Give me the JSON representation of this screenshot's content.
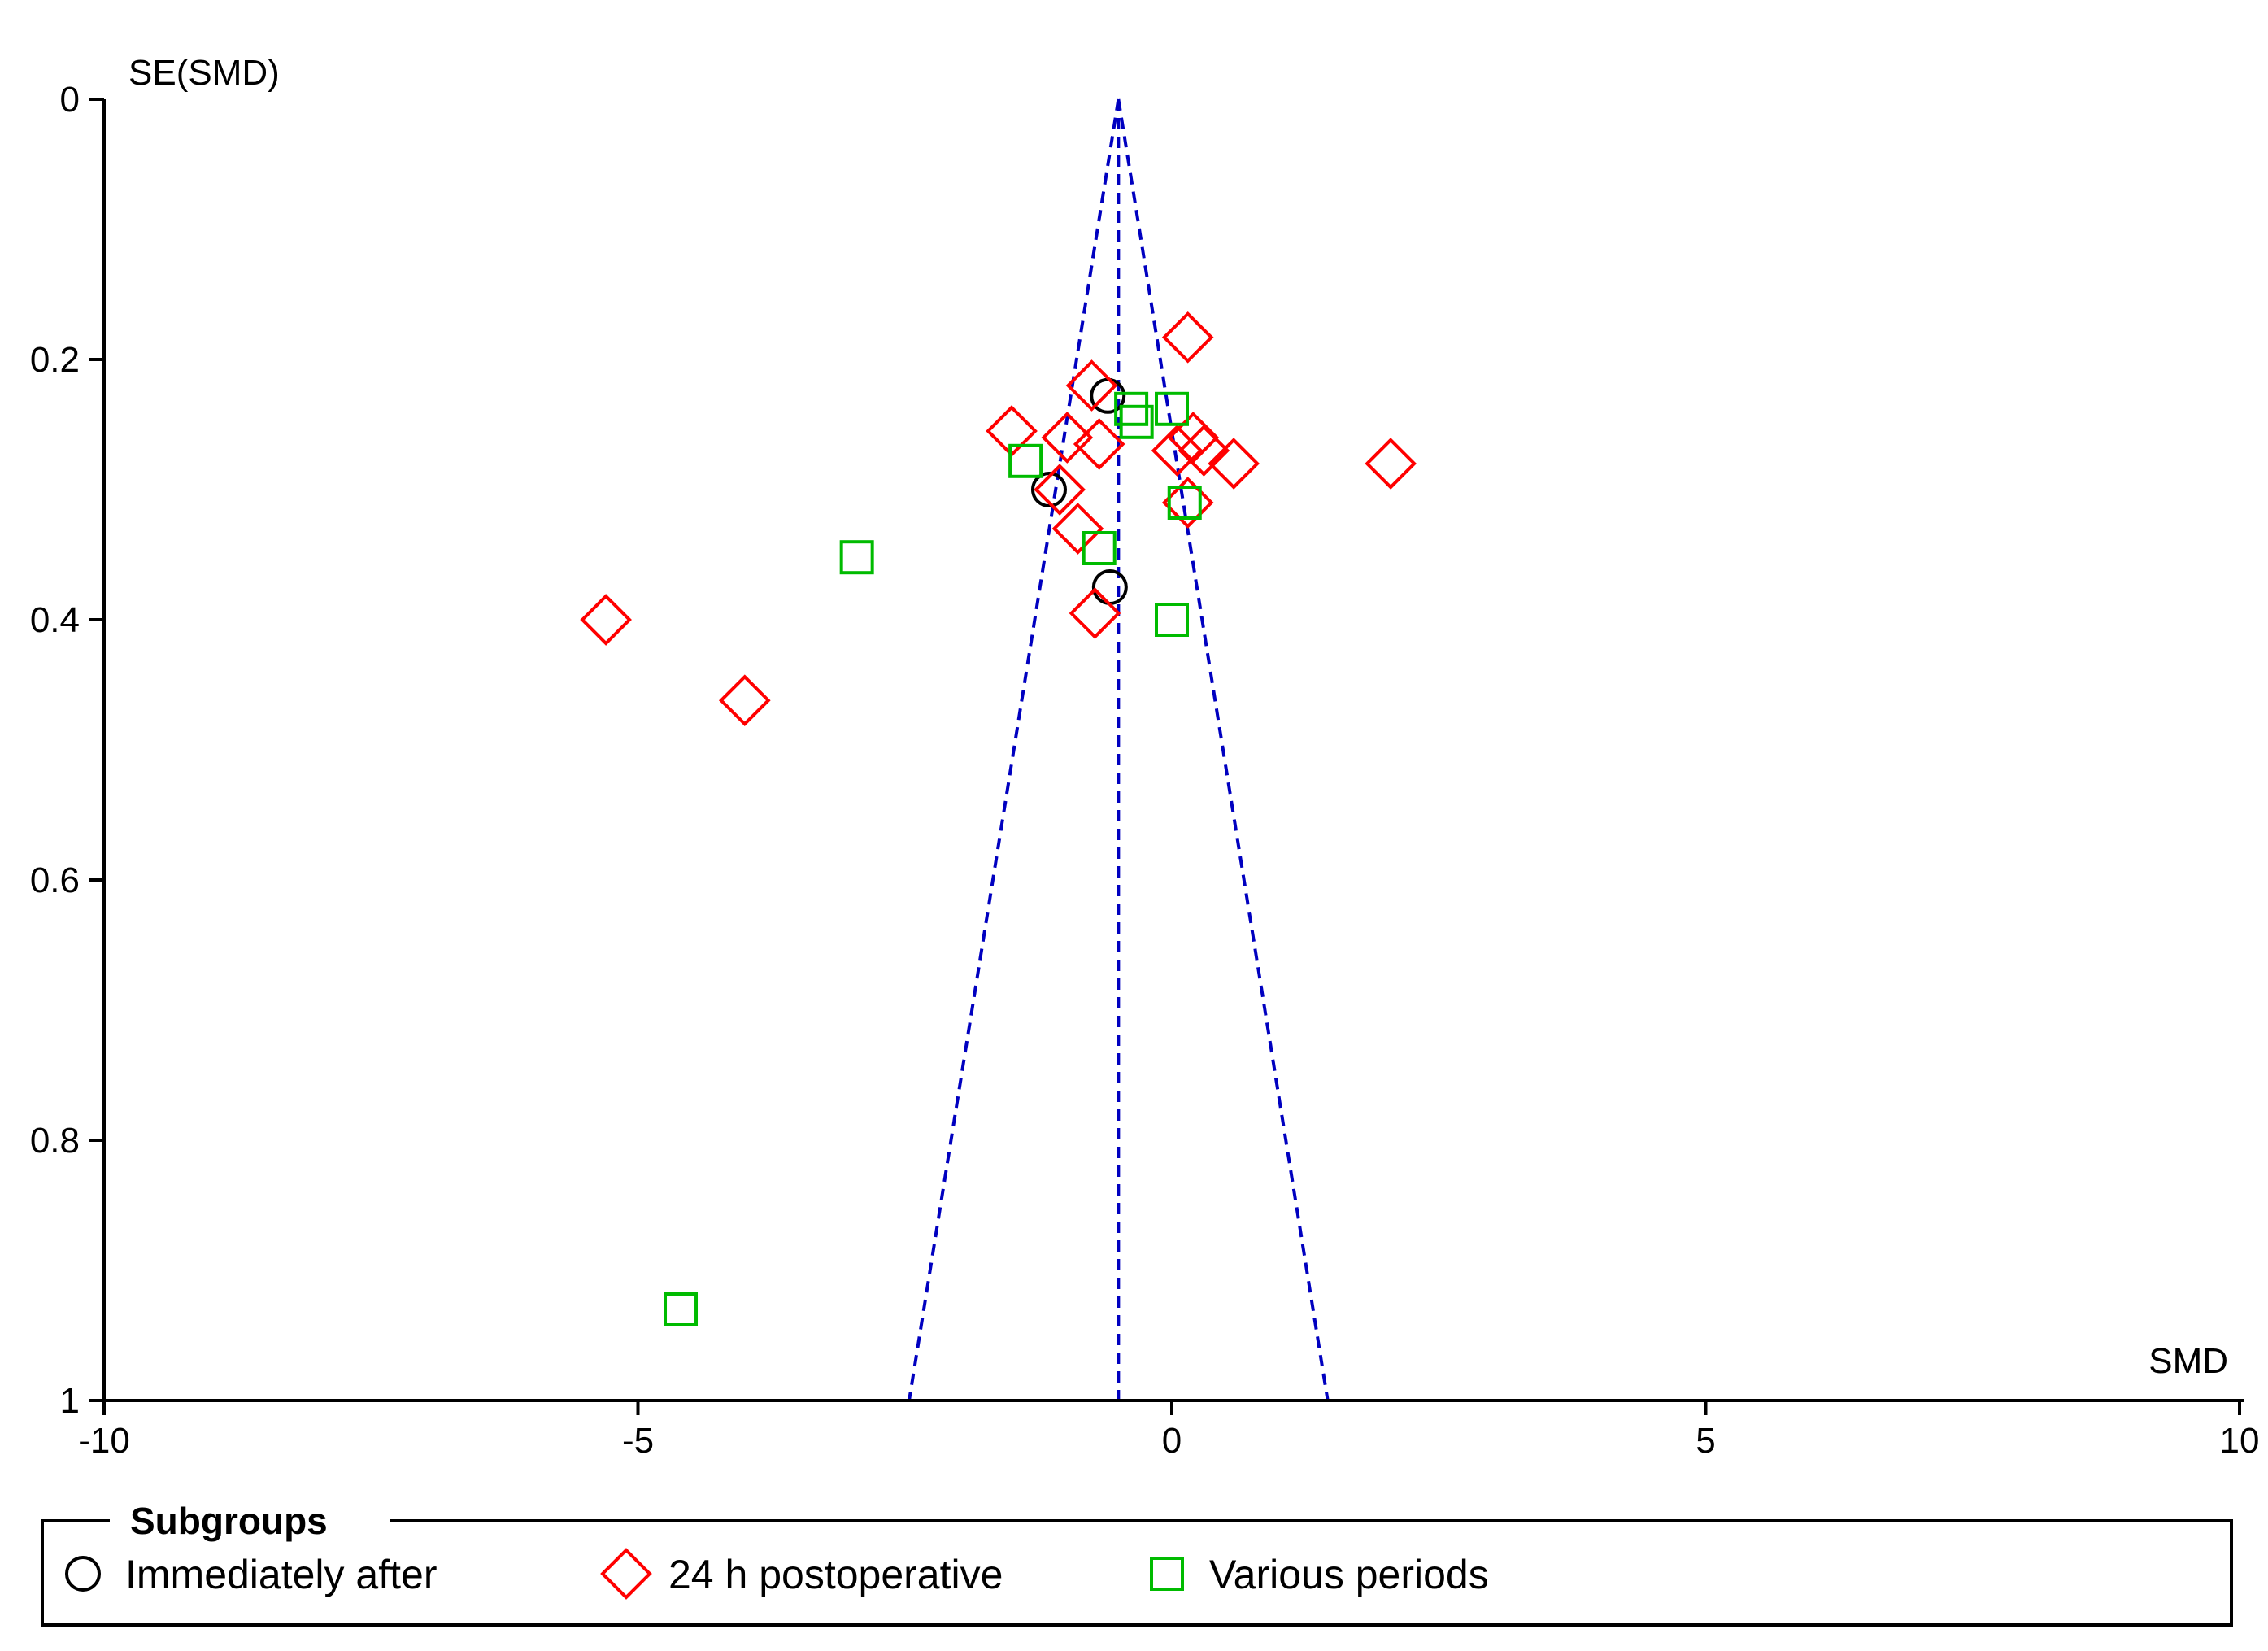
{
  "chart_data": {
    "type": "scatter",
    "title": "",
    "xlabel": "SMD",
    "ylabel": "SE(SMD)",
    "xlim": [
      -10,
      10
    ],
    "ylim": [
      0,
      1
    ],
    "y_inverted": true,
    "x_ticks": [
      "-10",
      "-5",
      "0",
      "5",
      "10"
    ],
    "x_tick_values": [
      -10,
      -5,
      0,
      5,
      10
    ],
    "y_ticks": [
      "0",
      "0.2",
      "0.4",
      "0.6",
      "0.8",
      "1"
    ],
    "y_tick_values": [
      0,
      0.2,
      0.4,
      0.6,
      0.8,
      1
    ],
    "pooled_estimate": -0.5,
    "funnel_limits": {
      "color": "#0000c0",
      "style": "dashed",
      "z": 1.96
    },
    "legend": {
      "title": "Subgroups",
      "position": "bottom"
    },
    "series": [
      {
        "name": "Immediately after",
        "marker": "circle",
        "color": "#000000",
        "points": [
          [
            -0.6,
            0.228
          ],
          [
            -1.15,
            0.3
          ],
          [
            -0.58,
            0.375
          ]
        ]
      },
      {
        "name": "24 h postoperative",
        "marker": "diamond",
        "color": "#ff0000",
        "points": [
          [
            0.15,
            0.183
          ],
          [
            -0.75,
            0.22
          ],
          [
            -1.5,
            0.255
          ],
          [
            -0.98,
            0.26
          ],
          [
            -0.68,
            0.265
          ],
          [
            0.2,
            0.26
          ],
          [
            0.3,
            0.27
          ],
          [
            0.05,
            0.27
          ],
          [
            0.58,
            0.28
          ],
          [
            2.05,
            0.28
          ],
          [
            -1.05,
            0.3
          ],
          [
            0.15,
            0.31
          ],
          [
            -0.88,
            0.33
          ],
          [
            -0.72,
            0.395
          ],
          [
            -5.3,
            0.4
          ],
          [
            -4.0,
            0.462
          ]
        ]
      },
      {
        "name": "Various periods",
        "marker": "square",
        "color": "#00bb00",
        "points": [
          [
            -0.38,
            0.238
          ],
          [
            0.0,
            0.238
          ],
          [
            -0.33,
            0.248
          ],
          [
            -1.37,
            0.278
          ],
          [
            0.12,
            0.31
          ],
          [
            -0.68,
            0.345
          ],
          [
            -2.95,
            0.352
          ],
          [
            0.0,
            0.4
          ],
          [
            -4.6,
            0.93
          ]
        ]
      }
    ]
  }
}
